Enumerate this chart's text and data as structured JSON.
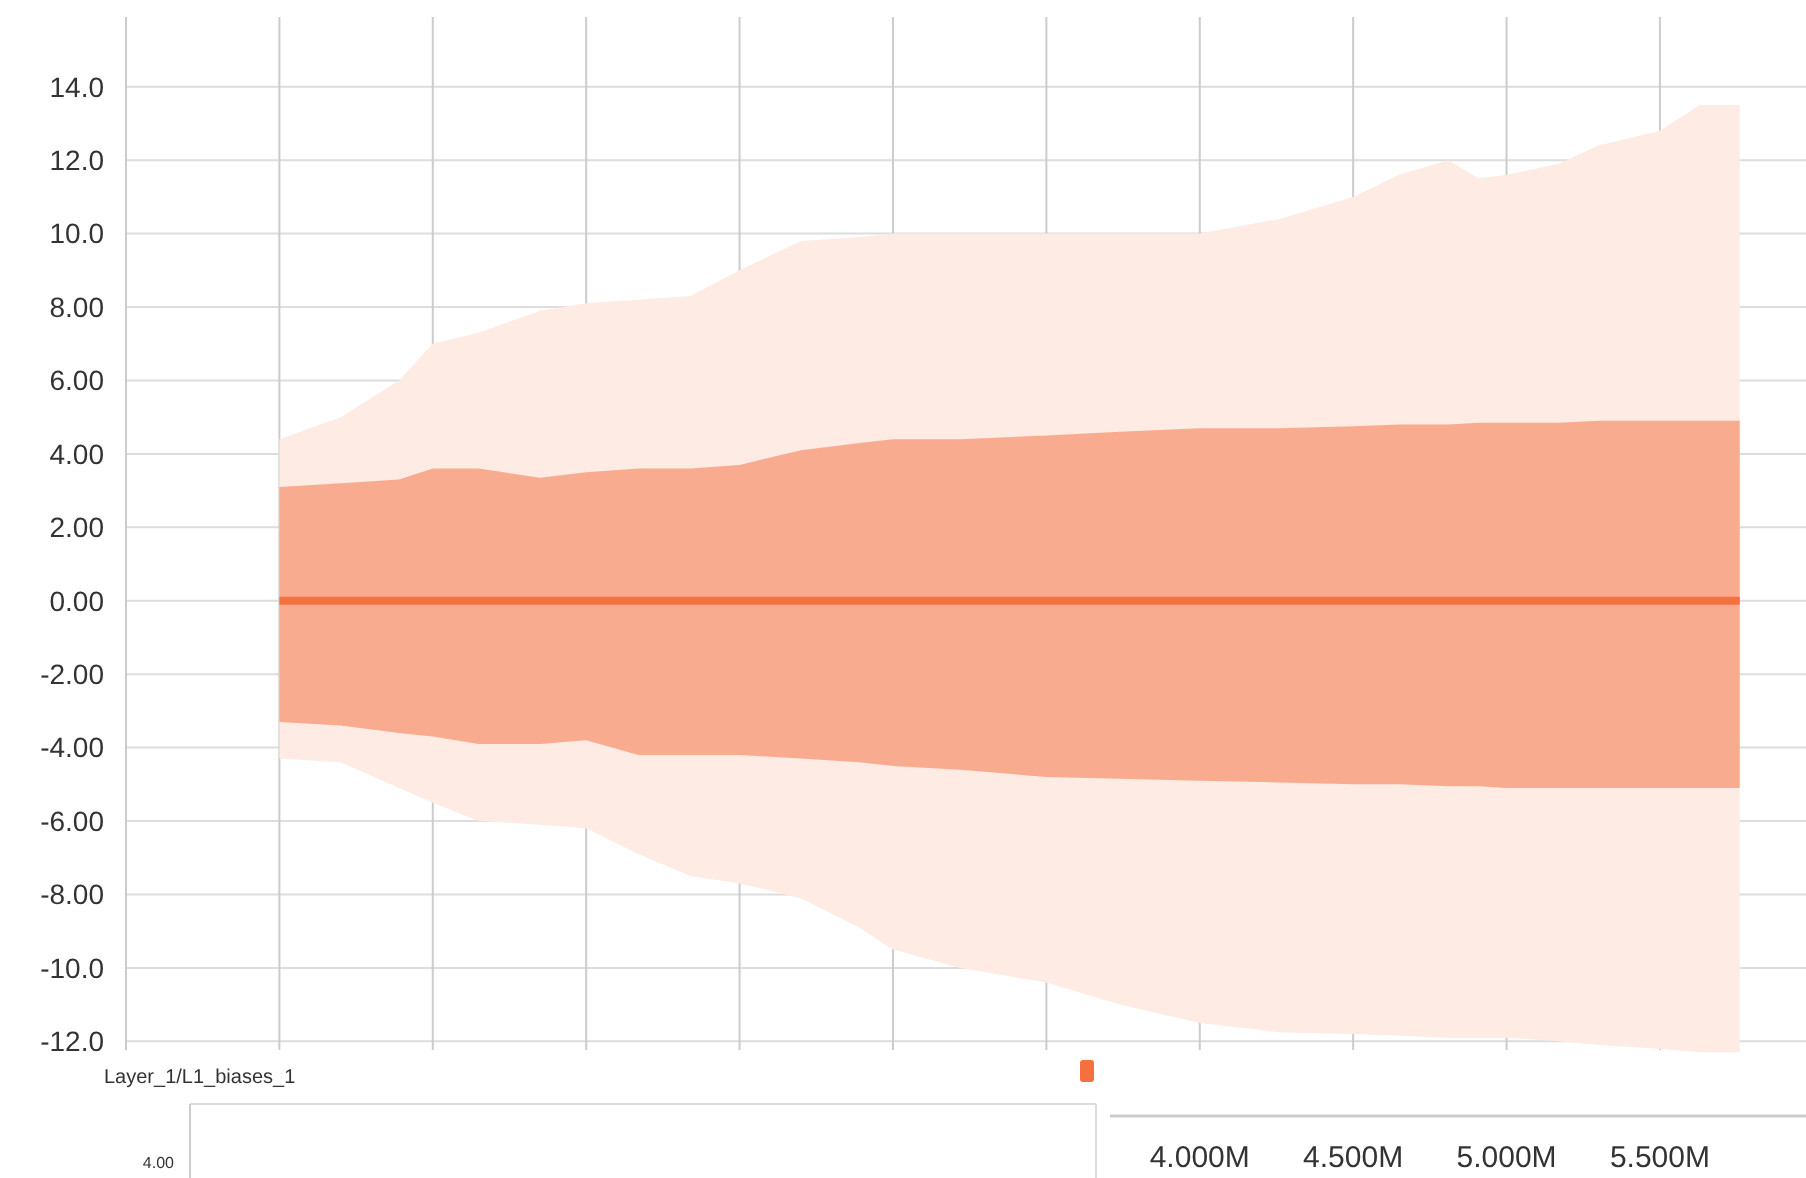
{
  "chart_data": [
    {
      "type": "line",
      "x": [
        1.0,
        1.2,
        1.39,
        1.5,
        1.65,
        1.85,
        2.0,
        2.17,
        2.34,
        2.5,
        2.7,
        2.89,
        3.0,
        3.22,
        3.5,
        3.74,
        4.0,
        4.26,
        4.5,
        4.65,
        4.81,
        4.91,
        5.0,
        5.17,
        5.3,
        5.5,
        5.63,
        5.76
      ],
      "series": [
        {
          "color": "#fdebe4",
          "values": [
            null,
            null,
            null,
            null,
            null,
            null,
            null,
            null,
            null,
            null,
            null,
            null,
            null,
            null,
            null,
            null,
            null,
            null,
            null,
            null,
            null,
            null,
            null,
            null,
            null,
            null,
            null,
            null
          ],
          "lower": [
            -4.3,
            -4.4,
            -5.1,
            -5.5,
            -6.0,
            -6.1,
            -6.2,
            -6.9,
            -7.5,
            -7.7,
            -8.1,
            -8.9,
            -9.5,
            -10.0,
            -10.4,
            -11.0,
            -11.5,
            -11.75,
            -11.8,
            -11.85,
            -11.9,
            -11.9,
            -11.9,
            -12.0,
            -12.1,
            -12.2,
            -12.3,
            -12.3
          ],
          "upper": [
            4.4,
            5.0,
            6.0,
            7.0,
            7.3,
            7.9,
            8.1,
            8.2,
            8.3,
            9.0,
            9.8,
            9.9,
            10.0,
            10.0,
            10.0,
            10.0,
            10.0,
            10.4,
            11.0,
            11.6,
            12.0,
            11.5,
            11.6,
            11.9,
            12.4,
            12.8,
            13.5,
            13.5
          ]
        },
        {
          "color": "#f9ab90",
          "values": [
            null,
            null,
            null,
            null,
            null,
            null,
            null,
            null,
            null,
            null,
            null,
            null,
            null,
            null,
            null,
            null,
            null,
            null,
            null,
            null,
            null,
            null,
            null,
            null,
            null,
            null,
            null,
            null
          ],
          "lower": [
            -3.3,
            -3.4,
            -3.6,
            -3.7,
            -3.9,
            -3.9,
            -3.8,
            -4.2,
            -4.2,
            -4.2,
            -4.3,
            -4.4,
            -4.5,
            -4.6,
            -4.8,
            -4.85,
            -4.9,
            -4.95,
            -5.0,
            -5.0,
            -5.05,
            -5.05,
            -5.1,
            -5.1,
            -5.1,
            -5.1,
            -5.1,
            -5.1
          ],
          "upper": [
            3.1,
            3.2,
            3.3,
            3.6,
            3.6,
            3.35,
            3.5,
            3.6,
            3.6,
            3.7,
            4.1,
            4.3,
            4.4,
            4.4,
            4.5,
            4.6,
            4.7,
            4.7,
            4.75,
            4.8,
            4.8,
            4.85,
            4.85,
            4.85,
            4.9,
            4.9,
            4.9,
            4.9
          ]
        },
        {
          "color": "#f4703f",
          "values": [
            0,
            0,
            0,
            0,
            0,
            0,
            0,
            0,
            0,
            0,
            0,
            0,
            0,
            0,
            0,
            0,
            0,
            0,
            0,
            0,
            0,
            0,
            0,
            0,
            0,
            0,
            0,
            0
          ]
        }
      ],
      "xlim": [
        0.5,
        5.95
      ],
      "xticks": [
        {
          "value": 1.0,
          "label": null
        },
        {
          "value": 1.5,
          "label": null
        },
        {
          "value": 2.0,
          "label": null
        },
        {
          "value": 2.5,
          "label": null
        },
        {
          "value": 3.0,
          "label": null
        },
        {
          "value": 3.5,
          "label": null
        },
        {
          "value": 4.0,
          "label": "4.000M"
        },
        {
          "value": 4.5,
          "label": "4.500M"
        },
        {
          "value": 5.0,
          "label": "5.000M"
        },
        {
          "value": 5.5,
          "label": "5.500M"
        }
      ],
      "ylim": [
        -12.4,
        15.9
      ],
      "yticks": [
        {
          "value": 14,
          "label": "14.0"
        },
        {
          "value": 12,
          "label": "12.0"
        },
        {
          "value": 10,
          "label": "10.0"
        },
        {
          "value": 8,
          "label": "8.00"
        },
        {
          "value": 6,
          "label": "6.00"
        },
        {
          "value": 4,
          "label": "4.00"
        },
        {
          "value": 2,
          "label": "2.00"
        },
        {
          "value": 0,
          "label": "0.00"
        },
        {
          "value": -2,
          "label": "-2.00"
        },
        {
          "value": -4,
          "label": "-4.00"
        },
        {
          "value": -6,
          "label": "-6.00"
        },
        {
          "value": -8,
          "label": "-8.00"
        },
        {
          "value": -10,
          "label": "-10.0"
        },
        {
          "value": -12,
          "label": "-12.0"
        }
      ],
      "grid": true,
      "line_style": "solid"
    },
    {
      "type": "other",
      "title": "Layer_1/L1_biases_1",
      "annotations": [
        "4.00"
      ]
    }
  ]
}
